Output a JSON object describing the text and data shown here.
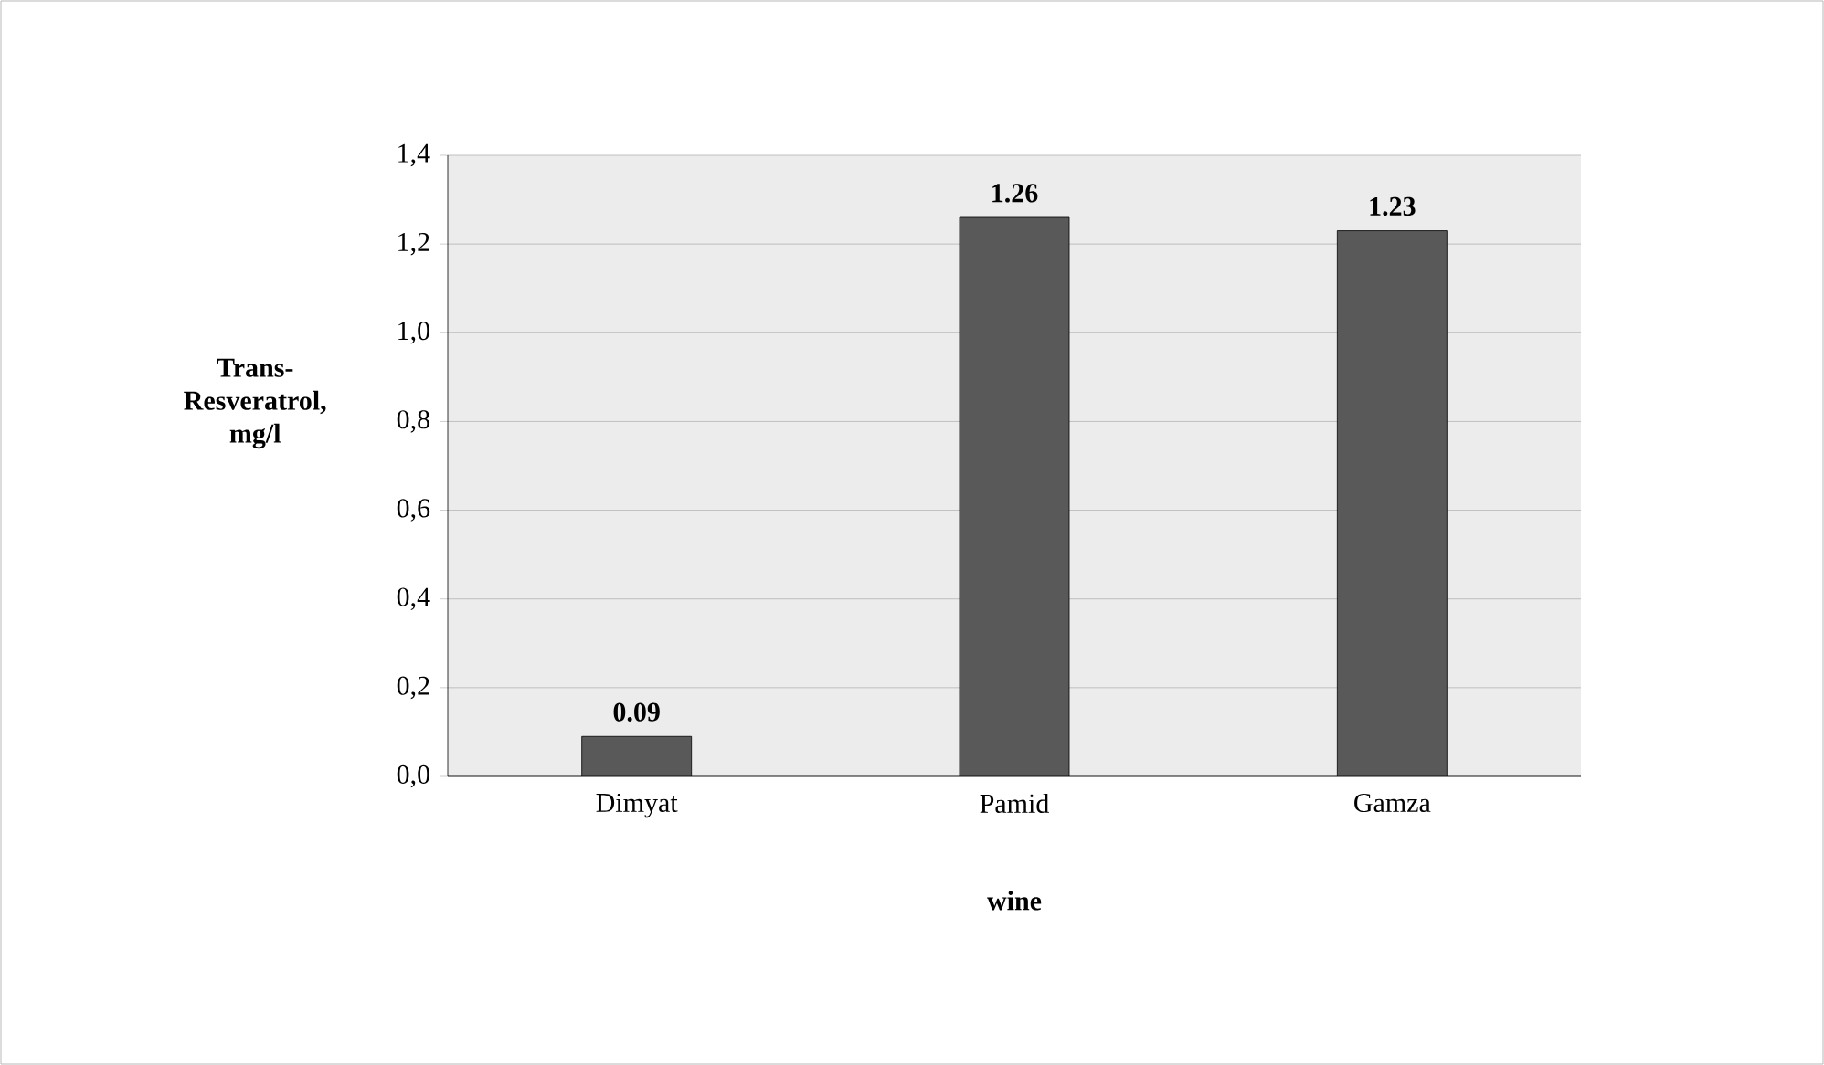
{
  "chart_data": {
    "type": "bar",
    "ylabel": "Trans-Resveratrol, mg/l",
    "xlabel": "wine",
    "categories": [
      "Dimyat",
      "Pamid",
      "Gamza"
    ],
    "values": [
      0.09,
      1.26,
      1.23
    ],
    "color": "#595959",
    "data_labels": true,
    "grid": "y",
    "ylim": [
      0,
      1.4
    ],
    "yticks": [
      {
        "value": 0,
        "label": "0,0"
      },
      {
        "value": 0.2,
        "label": "0,2"
      },
      {
        "value": 0.4,
        "label": "0,4"
      },
      {
        "value": 0.6,
        "label": "0,6"
      },
      {
        "value": 0.8,
        "label": "0,8"
      },
      {
        "value": 1.0,
        "label": "1,0"
      },
      {
        "value": 1.2,
        "label": "1,2"
      },
      {
        "value": 1.4,
        "label": "1,4"
      }
    ]
  }
}
